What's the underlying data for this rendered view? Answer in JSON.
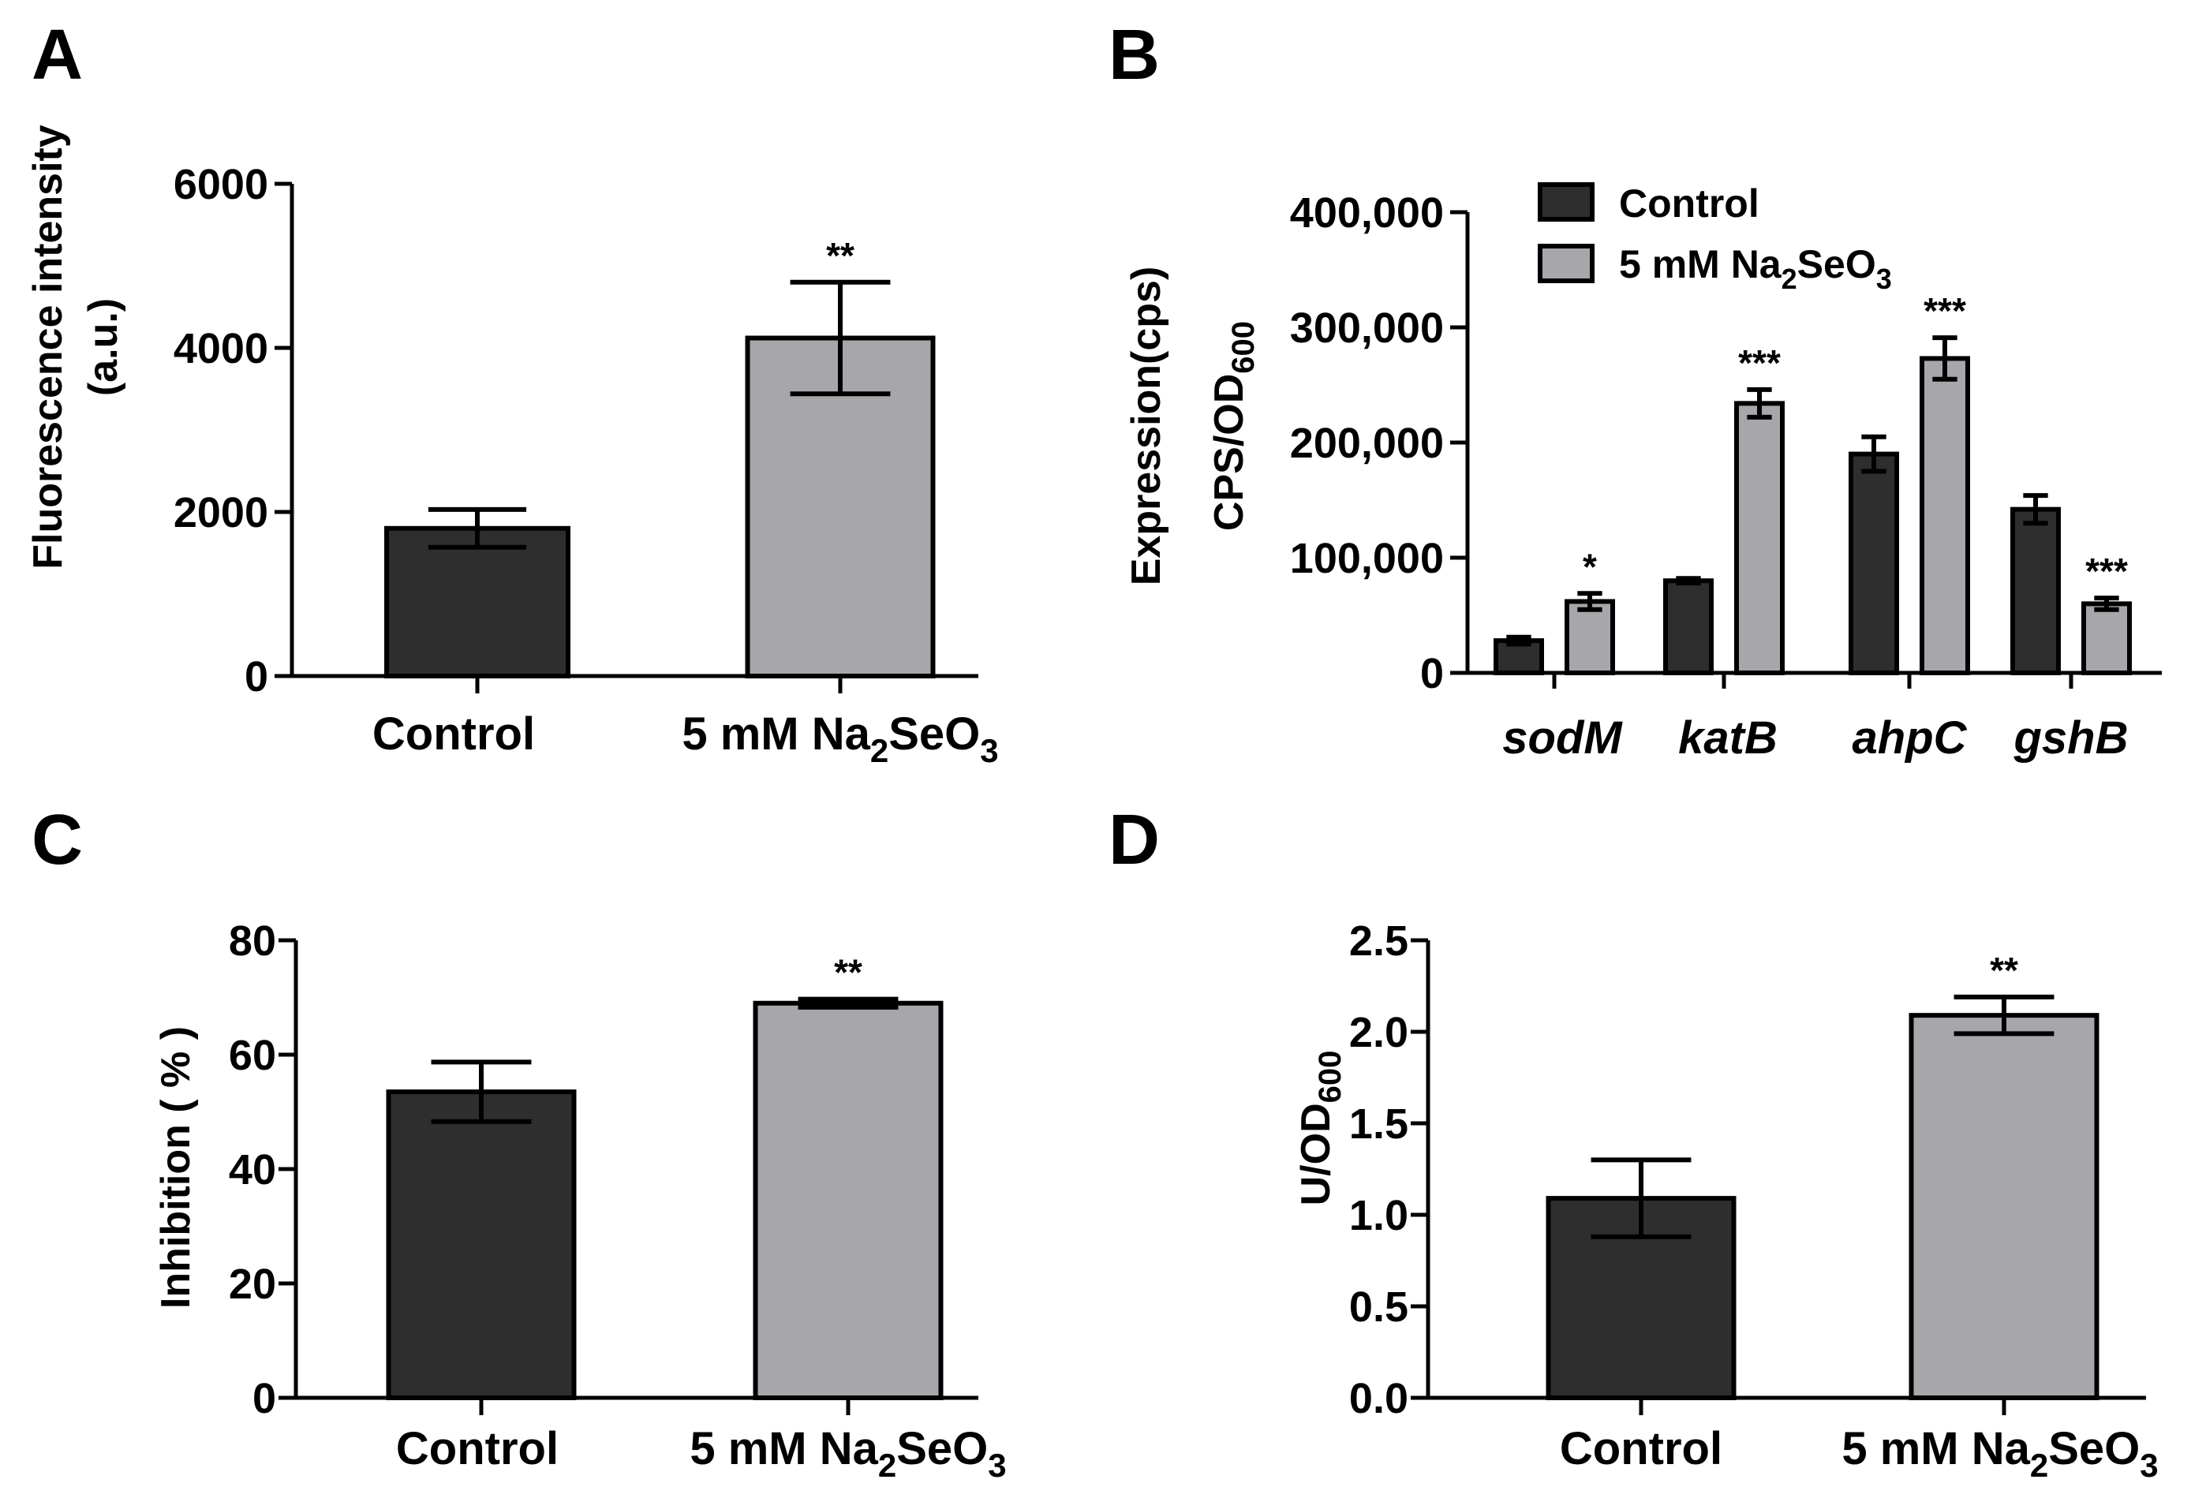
{
  "colors": {
    "control": "#2e2e2e",
    "treated": "#a7a7ab",
    "axis": "#000000"
  },
  "chart_data": [
    {
      "panel": "A",
      "type": "bar",
      "ylabel_lines": [
        "Fluorescence intensity",
        "(a.u.)"
      ],
      "yticks": [
        "6000",
        "4000",
        "2000",
        "0"
      ],
      "ylim": [
        0,
        6000
      ],
      "categories": [
        {
          "text": "Control",
          "sub": "",
          "after": "",
          "sub2": ""
        },
        {
          "text": "5 mM Na",
          "sub": "2",
          "after": "SeO",
          "sub2": "3"
        }
      ],
      "values": [
        1800,
        4120
      ],
      "errors": [
        230,
        680
      ],
      "significance": [
        "",
        "**"
      ]
    },
    {
      "panel": "B",
      "type": "bar",
      "ylabel_line1": "Expression(cps)",
      "ylabel_line2": "CPS/OD",
      "ylabel_line2_sub": "600",
      "yticks": [
        "400,000",
        "300,000",
        "200,000",
        "100,000",
        "0"
      ],
      "ylim": [
        0,
        400000
      ],
      "categories": [
        "sodM",
        "katB",
        "ahpC",
        "gshB"
      ],
      "legend": [
        {
          "text": "Control",
          "sub": "",
          "after": "",
          "sub2": ""
        },
        {
          "text": "5 mM Na",
          "sub": "2",
          "after": "SeO",
          "sub2": "3"
        }
      ],
      "series": [
        {
          "name": "Control",
          "values": [
            28000,
            80000,
            190000,
            142000
          ],
          "errors": [
            3000,
            2000,
            15000,
            12000
          ],
          "significance": [
            "",
            "",
            "",
            ""
          ]
        },
        {
          "name": "5 mM Na2SeO3",
          "values": [
            62000,
            234000,
            273000,
            60000
          ],
          "errors": [
            7000,
            12000,
            18000,
            5000
          ],
          "significance": [
            "*",
            "***",
            "***",
            "***"
          ]
        }
      ]
    },
    {
      "panel": "C",
      "type": "bar",
      "ylabel": "Inhibition ( % )",
      "yticks": [
        "80",
        "60",
        "40",
        "20",
        "0"
      ],
      "ylim": [
        0,
        80
      ],
      "categories": [
        {
          "text": "Control",
          "sub": "",
          "after": "",
          "sub2": ""
        },
        {
          "text": "5 mM Na",
          "sub": "2",
          "after": "SeO",
          "sub2": "3"
        }
      ],
      "values": [
        53.5,
        69
      ],
      "errors": [
        5.2,
        0.7
      ],
      "significance": [
        "",
        "**"
      ]
    },
    {
      "panel": "D",
      "type": "bar",
      "ylabel_text": "U/OD",
      "ylabel_sub": "600",
      "yticks": [
        "2.5",
        "2.0",
        "1.5",
        "1.0",
        "0.5",
        "0.0"
      ],
      "ylim": [
        0,
        2.5
      ],
      "categories": [
        {
          "text": "Control",
          "sub": "",
          "after": "",
          "sub2": ""
        },
        {
          "text": "5 mM Na",
          "sub": "2",
          "after": "SeO",
          "sub2": "3"
        }
      ],
      "values": [
        1.09,
        2.09
      ],
      "errors": [
        0.21,
        0.1
      ],
      "significance": [
        "",
        "**"
      ]
    }
  ]
}
